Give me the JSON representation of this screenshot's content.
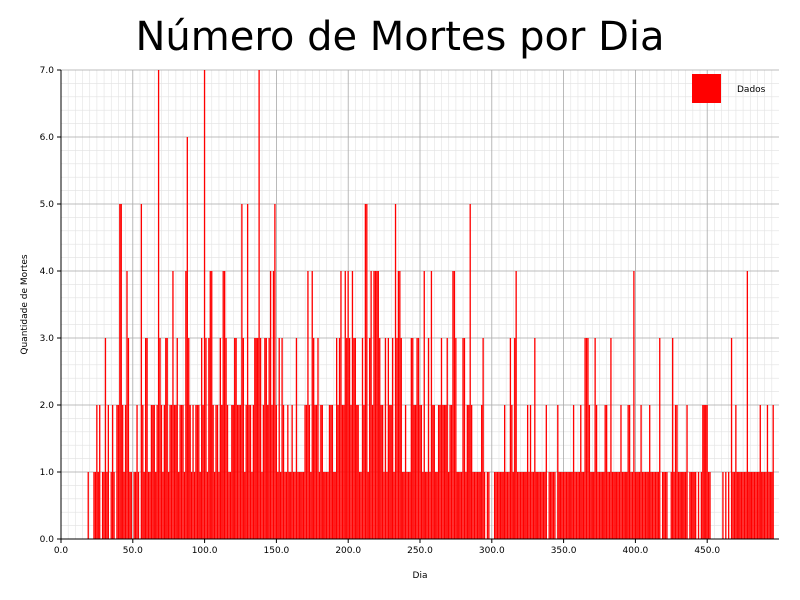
{
  "chart_data": {
    "type": "bar",
    "title": "Número de Mortes por Dia",
    "xlabel": "Dia",
    "ylabel": "Quantidade de Mortes",
    "xlim": [
      0,
      500
    ],
    "ylim": [
      0,
      7
    ],
    "x_ticks": [
      "0.0",
      "50.0",
      "100.0",
      "150.0",
      "200.0",
      "250.0",
      "300.0",
      "350.0",
      "400.0",
      "450.0"
    ],
    "y_ticks": [
      "0.0",
      "1.0",
      "2.0",
      "3.0",
      "4.0",
      "5.0",
      "6.0",
      "7.0"
    ],
    "grid": true,
    "minor_grid": true,
    "legend_position": "top-right",
    "bar_color": "#ff0000",
    "series": [
      {
        "name": "Dados",
        "color": "#ff0000",
        "x_start": 1,
        "values": [
          0,
          0,
          0,
          0,
          0,
          0,
          0,
          0,
          0,
          0,
          0,
          0,
          0,
          0,
          0,
          0,
          0,
          0,
          1,
          0,
          0,
          0,
          1,
          1,
          2,
          1,
          2,
          0,
          1,
          1,
          3,
          1,
          2,
          0,
          1,
          2,
          1,
          0,
          2,
          2,
          5,
          5,
          2,
          1,
          2,
          4,
          3,
          1,
          1,
          0,
          1,
          1,
          2,
          1,
          0,
          5,
          2,
          1,
          3,
          3,
          1,
          1,
          2,
          2,
          2,
          1,
          2,
          7,
          3,
          2,
          1,
          2,
          3,
          3,
          1,
          2,
          2,
          4,
          2,
          2,
          3,
          1,
          2,
          2,
          2,
          1,
          4,
          6,
          3,
          2,
          1,
          2,
          1,
          2,
          2,
          2,
          1,
          3,
          2,
          7,
          3,
          1,
          3,
          4,
          4,
          2,
          1,
          2,
          2,
          1,
          3,
          2,
          4,
          4,
          3,
          2,
          1,
          1,
          2,
          2,
          3,
          3,
          2,
          2,
          2,
          5,
          3,
          1,
          2,
          5,
          2,
          2,
          1,
          2,
          3,
          3,
          3,
          7,
          3,
          1,
          2,
          3,
          3,
          2,
          3,
          4,
          2,
          4,
          5,
          2,
          1,
          3,
          1,
          3,
          2,
          1,
          1,
          2,
          1,
          1,
          2,
          1,
          1,
          3,
          1,
          1,
          1,
          1,
          1,
          2,
          2,
          4,
          2,
          1,
          4,
          3,
          2,
          2,
          3,
          1,
          2,
          2,
          1,
          1,
          1,
          1,
          2,
          2,
          2,
          1,
          1,
          3,
          2,
          3,
          4,
          2,
          2,
          4,
          3,
          4,
          3,
          2,
          4,
          3,
          3,
          2,
          2,
          1,
          1,
          3,
          2,
          5,
          5,
          1,
          3,
          4,
          2,
          4,
          4,
          4,
          4,
          3,
          2,
          2,
          1,
          3,
          1,
          3,
          2,
          2,
          3,
          1,
          5,
          3,
          4,
          4,
          3,
          1,
          1,
          2,
          1,
          1,
          1,
          3,
          3,
          2,
          2,
          3,
          3,
          2,
          2,
          1,
          4,
          1,
          1,
          3,
          1,
          4,
          2,
          2,
          1,
          1,
          2,
          2,
          3,
          2,
          2,
          2,
          3,
          1,
          2,
          2,
          4,
          4,
          3,
          1,
          1,
          1,
          1,
          3,
          3,
          1,
          2,
          2,
          5,
          2,
          1,
          1,
          1,
          1,
          1,
          1,
          2,
          3,
          1,
          0,
          1,
          1,
          0,
          0,
          0,
          1,
          1,
          1,
          1,
          1,
          1,
          1,
          2,
          1,
          1,
          1,
          3,
          2,
          1,
          3,
          4,
          1,
          1,
          1,
          1,
          1,
          1,
          1,
          2,
          1,
          2,
          1,
          1,
          3,
          1,
          1,
          1,
          1,
          1,
          1,
          1,
          2,
          0,
          1,
          1,
          1,
          1,
          1,
          0,
          2,
          1,
          1,
          1,
          1,
          1,
          1,
          1,
          1,
          1,
          1,
          2,
          1,
          1,
          1,
          1,
          2,
          1,
          1,
          3,
          3,
          3,
          2,
          1,
          1,
          1,
          3,
          2,
          1,
          1,
          1,
          1,
          1,
          2,
          2,
          1,
          1,
          3,
          1,
          1,
          1,
          1,
          1,
          1,
          2,
          1,
          1,
          1,
          1,
          2,
          2,
          1,
          1,
          4,
          1,
          1,
          1,
          1,
          2,
          1,
          1,
          1,
          1,
          1,
          2,
          1,
          1,
          1,
          1,
          1,
          1,
          3,
          0,
          1,
          1,
          1,
          1,
          0,
          0,
          1,
          3,
          1,
          2,
          2,
          1,
          1,
          1,
          1,
          1,
          1,
          2,
          0,
          1,
          1,
          1,
          1,
          1,
          0,
          1,
          0,
          1,
          2,
          2,
          2,
          2,
          1,
          1,
          0,
          0,
          0,
          0,
          0,
          0,
          0,
          0,
          1,
          0,
          1,
          0,
          1,
          0,
          3,
          1,
          1,
          2,
          1,
          1,
          1,
          1,
          1,
          1,
          1,
          4,
          1,
          1,
          1,
          1,
          1,
          1,
          1,
          1,
          2,
          1,
          1,
          1,
          1,
          2,
          1,
          1,
          1,
          2
        ]
      }
    ]
  }
}
